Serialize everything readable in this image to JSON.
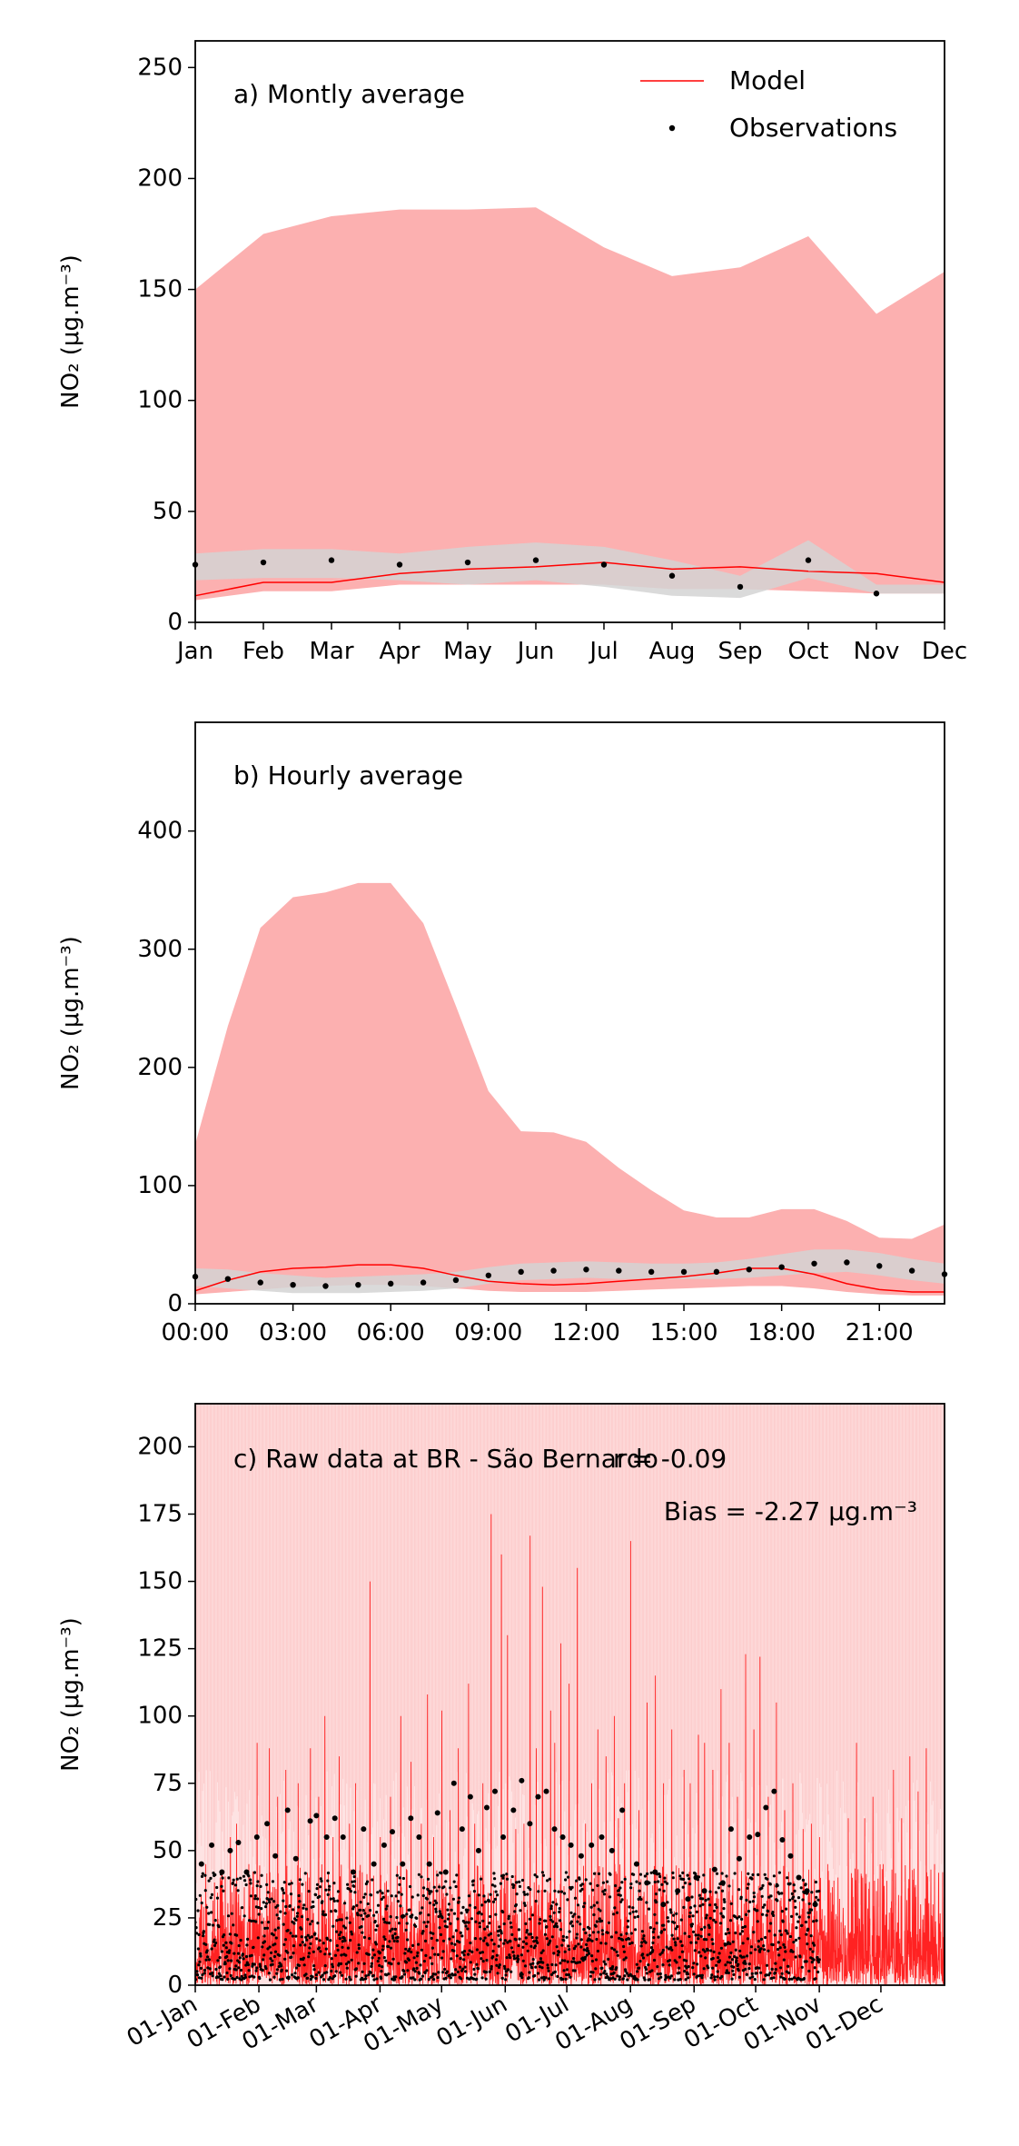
{
  "colors": {
    "model": "#ff0000",
    "model_band": "#fcb0b0",
    "obs_band": "#d3d3d3",
    "observations": "#000000"
  },
  "chart_data": [
    {
      "type": "line",
      "panel_label": "a) Montly average",
      "ylabel": "NO₂ (μg.m⁻³)",
      "xlabel": "",
      "categories": [
        "Jan",
        "Feb",
        "Mar",
        "Apr",
        "May",
        "Jun",
        "Jul",
        "Aug",
        "Sep",
        "Oct",
        "Nov",
        "Dec"
      ],
      "x_positions": [
        1,
        2,
        3,
        4,
        5,
        6,
        7,
        8,
        9,
        10,
        11,
        12
      ],
      "xlim": [
        1,
        12
      ],
      "ylim": [
        0,
        262
      ],
      "yticks": [
        0,
        50,
        100,
        150,
        200,
        250
      ],
      "legend": {
        "placement": "top-right",
        "entries": [
          "Model",
          "Observations"
        ]
      },
      "series": [
        {
          "name": "Model",
          "kind": "line",
          "values": [
            12,
            18,
            18,
            22,
            24,
            25,
            27,
            24,
            25,
            23,
            22,
            18
          ]
        },
        {
          "name": "Observations",
          "kind": "points",
          "values": [
            26,
            27,
            28,
            26,
            27,
            28,
            26,
            21,
            16,
            28,
            13,
            null
          ]
        },
        {
          "kind": "model_range",
          "lower": [
            10,
            14,
            14,
            17,
            17,
            17,
            17,
            15,
            15,
            14,
            13,
            13
          ],
          "upper": [
            150,
            175,
            183,
            186,
            186,
            187,
            169,
            156,
            160,
            174,
            139,
            158
          ]
        },
        {
          "kind": "obs_range",
          "lower": [
            19,
            20,
            20,
            19,
            17,
            19,
            16,
            12,
            11,
            20,
            13,
            13
          ],
          "upper": [
            31,
            33,
            33,
            31,
            34,
            36,
            34,
            28,
            21,
            37,
            17,
            17
          ]
        }
      ]
    },
    {
      "type": "line",
      "panel_label": "b) Hourly average",
      "ylabel": "NO₂ (μg.m⁻³)",
      "xlabel": "",
      "categories": [
        "00:00",
        "03:00",
        "06:00",
        "09:00",
        "12:00",
        "15:00",
        "18:00",
        "21:00"
      ],
      "x_positions": [
        0,
        3,
        6,
        9,
        12,
        15,
        18,
        21
      ],
      "xlim": [
        0,
        23
      ],
      "ylim": [
        0,
        492
      ],
      "yticks": [
        0,
        100,
        200,
        300,
        400
      ],
      "series": [
        {
          "name": "Model",
          "kind": "line",
          "x": [
            0,
            1,
            2,
            3,
            4,
            5,
            6,
            7,
            8,
            9,
            10,
            11,
            12,
            13,
            14,
            15,
            16,
            17,
            18,
            19,
            20,
            21,
            22,
            23
          ],
          "values": [
            11,
            20,
            27,
            30,
            31,
            33,
            33,
            30,
            24,
            19,
            17,
            16,
            17,
            19,
            21,
            23,
            26,
            30,
            30,
            25,
            17,
            12,
            10,
            10
          ]
        },
        {
          "name": "Observations",
          "kind": "points",
          "x": [
            0,
            1,
            2,
            3,
            4,
            5,
            6,
            7,
            8,
            9,
            10,
            11,
            12,
            13,
            14,
            15,
            16,
            17,
            18,
            19,
            20,
            21,
            22,
            23
          ],
          "values": [
            23,
            21,
            18,
            16,
            15,
            16,
            17,
            18,
            20,
            24,
            27,
            28,
            29,
            28,
            27,
            27,
            27,
            29,
            31,
            34,
            35,
            32,
            28,
            25
          ]
        },
        {
          "kind": "model_range",
          "x": [
            0,
            1,
            2,
            3,
            4,
            5,
            6,
            7,
            8,
            9,
            10,
            11,
            12,
            13,
            14,
            15,
            16,
            17,
            18,
            19,
            20,
            21,
            22,
            23
          ],
          "lower": [
            8,
            10,
            12,
            14,
            15,
            16,
            16,
            15,
            13,
            11,
            10,
            10,
            10,
            11,
            12,
            13,
            14,
            15,
            15,
            13,
            10,
            8,
            7,
            7
          ],
          "upper": [
            135,
            235,
            318,
            344,
            348,
            356,
            356,
            322,
            252,
            180,
            146,
            145,
            137,
            115,
            96,
            79,
            73,
            73,
            80,
            80,
            70,
            56,
            55,
            67
          ]
        },
        {
          "kind": "obs_range",
          "x": [
            0,
            1,
            2,
            3,
            4,
            5,
            6,
            7,
            8,
            9,
            10,
            11,
            12,
            13,
            14,
            15,
            16,
            17,
            18,
            19,
            20,
            21,
            22,
            23
          ],
          "lower": [
            15,
            13,
            11,
            9,
            9,
            9,
            10,
            11,
            13,
            17,
            20,
            21,
            22,
            21,
            21,
            21,
            21,
            22,
            24,
            26,
            27,
            24,
            20,
            17
          ],
          "upper": [
            30,
            29,
            26,
            24,
            22,
            23,
            24,
            25,
            27,
            31,
            34,
            35,
            36,
            35,
            34,
            34,
            35,
            38,
            42,
            46,
            46,
            43,
            38,
            34
          ]
        }
      ]
    },
    {
      "type": "line",
      "panel_label": "c) Raw data at BR - São Bernardo",
      "stat_r": "r = -0.09",
      "stat_bias": "Bias = -2.27 μg.m⁻³",
      "ylabel": "NO₂ (μg.m⁻³)",
      "xlabel": "",
      "categories": [
        "01-Jan",
        "01-Feb",
        "01-Mar",
        "01-Apr",
        "01-May",
        "01-Jun",
        "01-Jul",
        "01-Aug",
        "01-Sep",
        "01-Oct",
        "01-Nov",
        "01-Dec"
      ],
      "x_positions": [
        0,
        31,
        59,
        90,
        120,
        151,
        181,
        212,
        243,
        273,
        304,
        334
      ],
      "x_unit": "day of year",
      "xlim": [
        0,
        365
      ],
      "ylim": [
        0,
        216
      ],
      "yticks": [
        0,
        25,
        50,
        75,
        100,
        125,
        150,
        175,
        200
      ],
      "series": [
        {
          "name": "Model",
          "kind": "hourly_line",
          "typical_range": [
            0,
            45
          ],
          "peaks": [
            [
              5,
              45
            ],
            [
              12,
              40
            ],
            [
              17,
              55
            ],
            [
              20,
              60
            ],
            [
              26,
              45
            ],
            [
              30,
              90
            ],
            [
              36,
              88
            ],
            [
              40,
              70
            ],
            [
              44,
              80
            ],
            [
              50,
              75
            ],
            [
              56,
              88
            ],
            [
              60,
              70
            ],
            [
              63,
              100
            ],
            [
              67,
              55
            ],
            [
              70,
              85
            ],
            [
              75,
              60
            ],
            [
              78,
              75
            ],
            [
              85,
              150
            ],
            [
              90,
              55
            ],
            [
              95,
              70
            ],
            [
              100,
              100
            ],
            [
              105,
              83
            ],
            [
              110,
              60
            ],
            [
              113,
              108
            ],
            [
              116,
              55
            ],
            [
              120,
              102
            ],
            [
              124,
              65
            ],
            [
              128,
              88
            ],
            [
              133,
              112
            ],
            [
              136,
              60
            ],
            [
              140,
              75
            ],
            [
              144,
              175
            ],
            [
              149,
              160
            ],
            [
              152,
              130
            ],
            [
              156,
              58
            ],
            [
              160,
              60
            ],
            [
              163,
              167
            ],
            [
              166,
              88
            ],
            [
              169,
              148
            ],
            [
              173,
              102
            ],
            [
              175,
              90
            ],
            [
              178,
              127
            ],
            [
              182,
              112
            ],
            [
              186,
              155
            ],
            [
              190,
              60
            ],
            [
              193,
              75
            ],
            [
              196,
              95
            ],
            [
              200,
              85
            ],
            [
              204,
              100
            ],
            [
              206,
              62
            ],
            [
              209,
              75
            ],
            [
              212,
              165
            ],
            [
              216,
              65
            ],
            [
              220,
              105
            ],
            [
              224,
              115
            ],
            [
              228,
              75
            ],
            [
              232,
              95
            ],
            [
              238,
              80
            ],
            [
              241,
              75
            ],
            [
              245,
              93
            ],
            [
              248,
              90
            ],
            [
              252,
              80
            ],
            [
              256,
              110
            ],
            [
              260,
              90
            ],
            [
              264,
              70
            ],
            [
              268,
              123
            ],
            [
              272,
              95
            ],
            [
              275,
              122
            ],
            [
              279,
              70
            ],
            [
              283,
              105
            ],
            [
              287,
              65
            ],
            [
              291,
              75
            ],
            [
              296,
              58
            ],
            [
              300,
              60
            ],
            [
              304,
              55
            ],
            [
              308,
              45
            ],
            [
              313,
              40
            ],
            [
              318,
              62
            ],
            [
              322,
              90
            ],
            [
              326,
              62
            ],
            [
              330,
              70
            ],
            [
              335,
              45
            ],
            [
              340,
              80
            ],
            [
              344,
              62
            ],
            [
              348,
              85
            ],
            [
              352,
              72
            ],
            [
              356,
              88
            ],
            [
              360,
              45
            ],
            [
              364,
              42
            ]
          ]
        },
        {
          "name": "Observations",
          "kind": "hourly_points",
          "available_range": [
            0,
            304
          ],
          "typical_range": [
            2,
            42
          ],
          "peaks": [
            [
              3,
              45
            ],
            [
              8,
              52
            ],
            [
              13,
              42
            ],
            [
              17,
              50
            ],
            [
              21,
              53
            ],
            [
              25,
              42
            ],
            [
              30,
              55
            ],
            [
              35,
              60
            ],
            [
              39,
              48
            ],
            [
              45,
              65
            ],
            [
              49,
              47
            ],
            [
              56,
              61
            ],
            [
              59,
              63
            ],
            [
              64,
              55
            ],
            [
              68,
              62
            ],
            [
              72,
              55
            ],
            [
              77,
              42
            ],
            [
              82,
              58
            ],
            [
              87,
              45
            ],
            [
              92,
              52
            ],
            [
              96,
              57
            ],
            [
              101,
              45
            ],
            [
              105,
              62
            ],
            [
              109,
              55
            ],
            [
              114,
              45
            ],
            [
              118,
              64
            ],
            [
              122,
              42
            ],
            [
              126,
              75
            ],
            [
              130,
              58
            ],
            [
              134,
              70
            ],
            [
              138,
              50
            ],
            [
              142,
              66
            ],
            [
              146,
              72
            ],
            [
              150,
              55
            ],
            [
              155,
              65
            ],
            [
              159,
              76
            ],
            [
              163,
              60
            ],
            [
              167,
              70
            ],
            [
              171,
              72
            ],
            [
              175,
              58
            ],
            [
              179,
              55
            ],
            [
              183,
              52
            ],
            [
              188,
              48
            ],
            [
              193,
              52
            ],
            [
              198,
              55
            ],
            [
              203,
              50
            ],
            [
              208,
              65
            ],
            [
              215,
              45
            ],
            [
              220,
              38
            ],
            [
              224,
              42
            ],
            [
              228,
              30
            ],
            [
              235,
              35
            ],
            [
              240,
              32
            ],
            [
              244,
              40
            ],
            [
              248,
              35
            ],
            [
              253,
              43
            ],
            [
              257,
              38
            ],
            [
              261,
              58
            ],
            [
              265,
              47
            ],
            [
              270,
              55
            ],
            [
              274,
              56
            ],
            [
              278,
              66
            ],
            [
              282,
              72
            ],
            [
              286,
              54
            ],
            [
              290,
              48
            ],
            [
              294,
              40
            ],
            [
              298,
              35
            ],
            [
              302,
              30
            ]
          ]
        },
        {
          "kind": "model_range",
          "lower": 0,
          "upper_exceeds_axis": true
        }
      ]
    }
  ]
}
